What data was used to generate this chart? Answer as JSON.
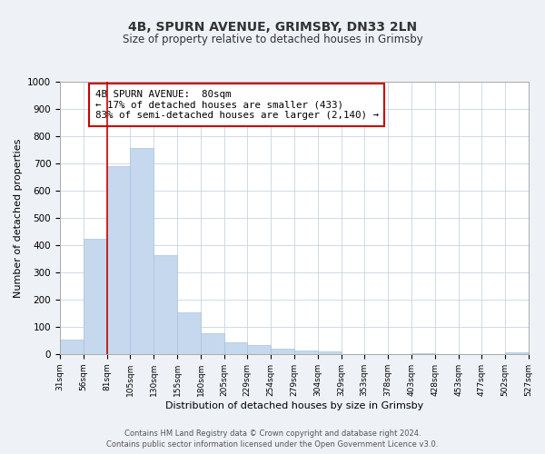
{
  "title": "4B, SPURN AVENUE, GRIMSBY, DN33 2LN",
  "subtitle": "Size of property relative to detached houses in Grimsby",
  "xlabel": "Distribution of detached houses by size in Grimsby",
  "ylabel": "Number of detached properties",
  "bar_color": "#c5d8ed",
  "bar_edgecolor": "#a8c4dc",
  "vline_x": 81,
  "vline_color": "#cc0000",
  "annotation_box_text": "4B SPURN AVENUE:  80sqm\n← 17% of detached houses are smaller (433)\n83% of semi-detached houses are larger (2,140) →",
  "annotation_box_edgecolor": "#cc0000",
  "annotation_box_facecolor": "#ffffff",
  "bins": [
    31,
    56,
    81,
    105,
    130,
    155,
    180,
    205,
    229,
    254,
    279,
    304,
    329,
    353,
    378,
    403,
    428,
    453,
    477,
    502,
    527
  ],
  "values": [
    52,
    425,
    690,
    758,
    363,
    153,
    77,
    42,
    33,
    20,
    13,
    10,
    0,
    0,
    0,
    5,
    0,
    0,
    0,
    8
  ],
  "ylim": [
    0,
    1000
  ],
  "yticks": [
    0,
    100,
    200,
    300,
    400,
    500,
    600,
    700,
    800,
    900,
    1000
  ],
  "tick_labels": [
    "31sqm",
    "56sqm",
    "81sqm",
    "105sqm",
    "130sqm",
    "155sqm",
    "180sqm",
    "205sqm",
    "229sqm",
    "254sqm",
    "279sqm",
    "304sqm",
    "329sqm",
    "353sqm",
    "378sqm",
    "403sqm",
    "428sqm",
    "453sqm",
    "477sqm",
    "502sqm",
    "527sqm"
  ],
  "footer_line1": "Contains HM Land Registry data © Crown copyright and database right 2024.",
  "footer_line2": "Contains public sector information licensed under the Open Government Licence v3.0.",
  "background_color": "#eef2f6",
  "plot_bg_color": "#ffffff",
  "grid_color": "#c8d4e0"
}
